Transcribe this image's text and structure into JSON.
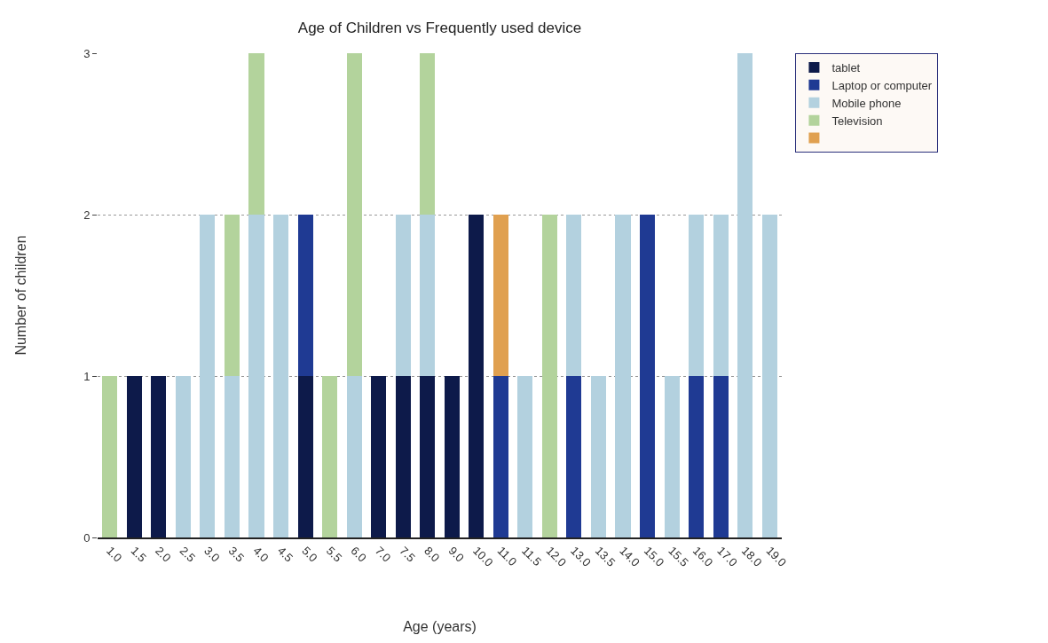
{
  "chart_data": {
    "type": "bar",
    "title": "Age of Children vs Frequently used device",
    "xlabel": "Age (years)",
    "ylabel": "Number of children",
    "categories": [
      "1.0",
      "1.5",
      "2.0",
      "2.5",
      "3.0",
      "3.5",
      "4.0",
      "4.5",
      "5.0",
      "5.5",
      "6.0",
      "7.0",
      "7.5",
      "8.0",
      "9.0",
      "10.0",
      "11.0",
      "11.5",
      "12.0",
      "13.0",
      "13.5",
      "14.0",
      "15.0",
      "15.5",
      "16.0",
      "17.0",
      "18.0",
      "19.0"
    ],
    "stacked": true,
    "series": [
      {
        "name": "tablet",
        "color": "#0d1a4a",
        "values": [
          null,
          1,
          1,
          null,
          null,
          null,
          null,
          null,
          1,
          null,
          null,
          1,
          1,
          1,
          1,
          2,
          null,
          null,
          null,
          null,
          null,
          null,
          null,
          null,
          null,
          null,
          null,
          null
        ]
      },
      {
        "name": "Laptop or computer",
        "color": "#1f3a93",
        "values": [
          null,
          null,
          null,
          null,
          null,
          null,
          null,
          null,
          1,
          null,
          null,
          null,
          null,
          null,
          null,
          null,
          1,
          null,
          null,
          1,
          null,
          null,
          2,
          null,
          1,
          1,
          null,
          null
        ]
      },
      {
        "name": "Mobile phone",
        "color": "#b3d1df",
        "values": [
          null,
          null,
          null,
          1,
          2,
          1,
          2,
          2,
          null,
          null,
          1,
          null,
          1,
          1,
          null,
          null,
          null,
          1,
          null,
          1,
          1,
          2,
          null,
          1,
          1,
          1,
          3,
          2
        ]
      },
      {
        "name": "Television",
        "color": "#b3d39c",
        "values": [
          1,
          null,
          null,
          null,
          null,
          1,
          1,
          null,
          null,
          1,
          2,
          null,
          null,
          1,
          null,
          null,
          null,
          null,
          2,
          null,
          null,
          null,
          null,
          null,
          null,
          null,
          null,
          null
        ]
      },
      {
        "color": "#e0a050",
        "values": [
          null,
          null,
          null,
          null,
          null,
          null,
          null,
          null,
          null,
          null,
          null,
          null,
          null,
          null,
          null,
          null,
          1,
          null,
          null,
          null,
          null,
          null,
          null,
          null,
          null,
          null,
          null,
          null
        ]
      }
    ],
    "ylim": [
      0,
      3
    ],
    "yticks": [
      0,
      1,
      2,
      3
    ],
    "grid": "y",
    "legend": "top right"
  }
}
